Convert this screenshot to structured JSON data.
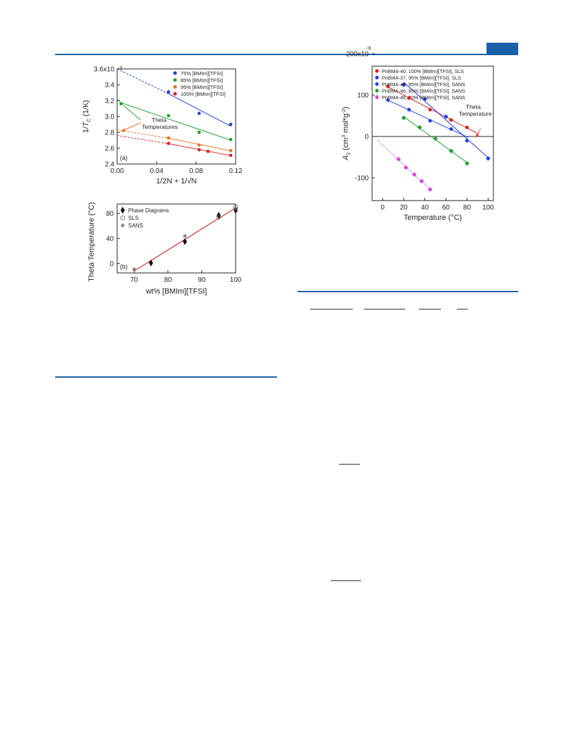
{
  "chart_data": [
    {
      "panel": "a",
      "type": "scatter",
      "ylabel": "1/Tc (1/K)",
      "ylabel_parts": {
        "pre": "1/",
        "var": "T",
        "sub": "C",
        "post": " (1/K)"
      },
      "xlabel": "1/2N + 1/√N",
      "panel_label": "(a)",
      "xlim": [
        0.0,
        0.12
      ],
      "ylim": [
        0.0024,
        0.0036
      ],
      "x_ticks": [
        "0.00",
        "0.04",
        "0.08",
        "0.12"
      ],
      "y_ticks": [
        "2.4",
        "2.6",
        "2.8",
        "3.0",
        "3.2",
        "3.4",
        "3.6x10"
      ],
      "y_exponent": "-3",
      "annotation": "Theta\nTemperatures",
      "annotation_lines": [
        "Theta",
        "Temperatures"
      ],
      "legend_position": "top-right",
      "series": [
        {
          "name": "75% [BMIm][TFSI]",
          "color": "#1f3fe0",
          "x": [
            0.052,
            0.083,
            0.115
          ],
          "y": [
            0.00331,
            0.00304,
            0.0029
          ],
          "fit_y0": 0.0036
        },
        {
          "name": "85% [BMIm][TFSI]",
          "color": "#20a030",
          "x": [
            0.004,
            0.052,
            0.083,
            0.115
          ],
          "y": [
            0.00316,
            0.00301,
            0.0028,
            0.00271
          ],
          "fit_y0": 0.00322
        },
        {
          "name": "95% [BMIm][TFSI]",
          "color": "#f07020",
          "x": [
            0.052,
            0.083,
            0.115
          ],
          "y": [
            0.00273,
            0.00264,
            0.00257
          ],
          "fit_y0": 0.00283
        },
        {
          "name": "100% [BMIm][TFSI]",
          "color": "#e02020",
          "x": [
            0.052,
            0.083,
            0.092,
            0.115
          ],
          "y": [
            0.00266,
            0.00258,
            0.00256,
            0.00251
          ],
          "fit_y0": 0.00276
        }
      ]
    },
    {
      "panel": "b",
      "type": "scatter",
      "ylabel": "Theta Temperature (°C)",
      "xlabel": "wt% [BMIm][TFSI]",
      "panel_label": "(b)",
      "xlim": [
        65,
        100
      ],
      "ylim": [
        -15,
        95
      ],
      "x_ticks": [
        "70",
        "80",
        "90",
        "100"
      ],
      "y_ticks": [
        "0",
        "40",
        "80"
      ],
      "legend_position": "top-left",
      "fit": {
        "color": "#e03030",
        "x": [
          70,
          100
        ],
        "y": [
          -12,
          89
        ]
      },
      "series": [
        {
          "name": "Phase Diagrams",
          "marker": "diamond",
          "x": [
            75,
            85,
            95,
            100
          ],
          "y": [
            1,
            35,
            77,
            85
          ]
        },
        {
          "name": "SLS",
          "marker": "circle",
          "x": [
            95,
            100
          ],
          "y": [
            74,
            90
          ]
        },
        {
          "name": "SANS",
          "marker": "asterisk",
          "x": [
            70,
            85,
            100
          ],
          "y": [
            -9,
            44,
            87
          ]
        }
      ]
    },
    {
      "panel": "c",
      "type": "scatter",
      "ylabel": "A2 (cm3 mol*g-2)",
      "ylabel_parts": {
        "var": "A",
        "sub": "2",
        "open": " (cm",
        "sup1": "3",
        "mid": " mol*g",
        "sup2": "-2",
        "close": ")"
      },
      "xlabel": "Temperature (°C)",
      "xlim": [
        -10,
        105
      ],
      "ylim": [
        -155,
        170
      ],
      "x_ticks": [
        "0",
        "20",
        "40",
        "60",
        "80",
        "100"
      ],
      "y_ticks": [
        "-100",
        "0",
        "100",
        "200x10"
      ],
      "y_exponent": "-6",
      "annotation": "Theta\nTemperature",
      "annotation_lines": [
        "Theta",
        "Temperature"
      ],
      "annotation_color": "#e03030",
      "legend_position": "top-left",
      "series": [
        {
          "name": "PnBMA-40, 100% [BMIm][TFSI], SLS",
          "color": "#e02020",
          "marker": "circle",
          "x": [
            5,
            25,
            45,
            65,
            80
          ],
          "y": [
            121,
            93,
            65,
            40,
            22
          ],
          "fit_x": [
            5,
            91
          ]
        },
        {
          "name": "PnBMA-37, 95% [BMIm][TFSI], SLS",
          "color": "#1f3fe0",
          "marker": "circle",
          "x": [
            5,
            25,
            45,
            65
          ],
          "y": [
            88,
            65,
            38,
            18
          ],
          "fit_x": [
            5,
            81
          ]
        },
        {
          "name": "PnBMA-46, 95% [BMIm][TFSI], SANS",
          "color": "#1f3fe0",
          "marker": "diamond",
          "x": [
            20,
            40,
            60,
            80,
            100
          ],
          "y": [
            125,
            90,
            48,
            -10,
            -53
          ],
          "fit_x": [
            20,
            100
          ]
        },
        {
          "name": "PnBMA-46, 85% [BMIm][TFSI], SANS",
          "color": "#20a030",
          "marker": "diamond",
          "x": [
            20,
            35,
            50,
            65,
            80
          ],
          "y": [
            45,
            22,
            -5,
            -35,
            -65
          ],
          "fit_x": [
            20,
            80
          ]
        },
        {
          "name": "PnBMA-46, 70% [BMIm][TFSI], SANS",
          "color": "#e040e0",
          "marker": "diamond",
          "x": [
            15,
            22,
            30,
            37,
            45
          ],
          "y": [
            -55,
            -75,
            -92,
            -108,
            -128
          ],
          "fit_x": [
            -5,
            45
          ]
        }
      ]
    }
  ]
}
